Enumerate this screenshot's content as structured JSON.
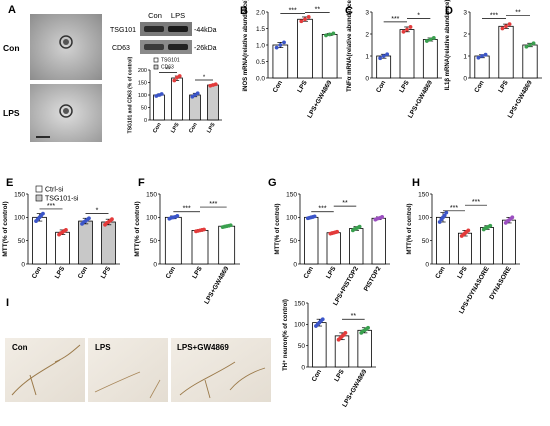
{
  "panels": [
    {
      "id": "A1",
      "letter": "A"
    },
    {
      "id": "B",
      "letter": "B"
    },
    {
      "id": "C",
      "letter": "C"
    },
    {
      "id": "D",
      "letter": "D"
    },
    {
      "id": "E",
      "letter": "E"
    },
    {
      "id": "F",
      "letter": "F"
    },
    {
      "id": "G",
      "letter": "G"
    },
    {
      "id": "H",
      "letter": "H"
    },
    {
      "id": "I",
      "letter": "I"
    }
  ],
  "panel_a": {
    "em_labels": [
      "Con",
      "LPS"
    ],
    "blot": {
      "columns": [
        "Con",
        "LPS"
      ],
      "rows": [
        {
          "protein": "TSG101",
          "size": "-44kDa"
        },
        {
          "protein": "CD63",
          "size": "-26kDa"
        }
      ]
    }
  },
  "panel_i": {
    "image_labels": [
      "Con",
      "LPS",
      "LPS+GW4869"
    ]
  },
  "colors": {
    "con": "#3b55c8",
    "lps": "#e33b3b",
    "gw4869": "#3aa04f",
    "pistop2": "#9b4fc0",
    "dynasore": "#9b4fc0",
    "gray_bar": "#c8c8c8"
  },
  "chart_data": [
    {
      "id": "A_bar",
      "type": "bar",
      "ylabel": "TSG101 and CD63 (% of control)",
      "categories": [
        "Con",
        "LPS",
        "Con",
        "LPS"
      ],
      "ylim": [
        0,
        200
      ],
      "yticks": [
        0,
        50,
        100,
        150,
        200
      ],
      "legend": [
        "TSG101",
        "CD63"
      ],
      "values": [
        100,
        168,
        100,
        140
      ],
      "bar_fill": [
        "#ffffff",
        "#ffffff",
        "#cccccc",
        "#cccccc"
      ],
      "points": [
        [
          96,
          100,
          104
        ],
        [
          158,
          170,
          176
        ],
        [
          93,
          100,
          107
        ],
        [
          137,
          140,
          143
        ]
      ],
      "point_colors": [
        "#3b55c8",
        "#e33b3b",
        "#3b55c8",
        "#e33b3b"
      ],
      "sig": [
        {
          "from": 0,
          "to": 1,
          "y": 190,
          "label": "**"
        },
        {
          "from": 2,
          "to": 3,
          "y": 160,
          "label": "*"
        }
      ]
    },
    {
      "id": "B",
      "type": "bar",
      "ylabel": "iNOS mRNA(relative abundance)",
      "categories": [
        "Con",
        "LPS",
        "LPS+GW4869"
      ],
      "ylim": [
        0,
        2.0
      ],
      "yticks": [
        0.0,
        0.5,
        1.0,
        1.5,
        2.0
      ],
      "values": [
        1.0,
        1.78,
        1.32
      ],
      "points": [
        [
          0.92,
          1.0,
          1.08
        ],
        [
          1.72,
          1.78,
          1.85
        ],
        [
          1.29,
          1.32,
          1.35
        ]
      ],
      "point_colors": [
        "#3b55c8",
        "#e33b3b",
        "#3aa04f"
      ],
      "sig": [
        {
          "from": 0,
          "to": 1,
          "y": 1.95,
          "label": "***"
        },
        {
          "from": 1,
          "to": 2,
          "y": 1.98,
          "label": "**"
        }
      ]
    },
    {
      "id": "C",
      "type": "bar",
      "ylabel": "TNFα mRNA(relative abundance)",
      "categories": [
        "Con",
        "LPS",
        "LPS+GW4869"
      ],
      "ylim": [
        0,
        3
      ],
      "yticks": [
        0,
        1,
        2,
        3
      ],
      "values": [
        1.0,
        2.2,
        1.75
      ],
      "points": [
        [
          0.9,
          1.0,
          1.08
        ],
        [
          2.1,
          2.2,
          2.32
        ],
        [
          1.68,
          1.75,
          1.82
        ]
      ],
      "point_colors": [
        "#3b55c8",
        "#e33b3b",
        "#3aa04f"
      ],
      "sig": [
        {
          "from": 0,
          "to": 1,
          "y": 2.55,
          "label": "***"
        },
        {
          "from": 1,
          "to": 2,
          "y": 2.7,
          "label": "*"
        }
      ]
    },
    {
      "id": "D",
      "type": "bar",
      "ylabel": "IL1β mRNA(relative abundance)",
      "categories": [
        "Con",
        "LPS",
        "LPS+GW4869"
      ],
      "ylim": [
        0,
        3
      ],
      "yticks": [
        0,
        1,
        2,
        3
      ],
      "values": [
        1.0,
        2.35,
        1.5
      ],
      "points": [
        [
          0.92,
          1.0,
          1.06
        ],
        [
          2.25,
          2.35,
          2.45
        ],
        [
          1.42,
          1.5,
          1.58
        ]
      ],
      "point_colors": [
        "#3b55c8",
        "#e33b3b",
        "#3aa04f"
      ],
      "sig": [
        {
          "from": 0,
          "to": 1,
          "y": 2.7,
          "label": "***"
        },
        {
          "from": 1,
          "to": 2,
          "y": 2.85,
          "label": "**"
        }
      ]
    },
    {
      "id": "E",
      "type": "bar",
      "ylabel": "MTT(% of control)",
      "categories": [
        "Con",
        "LPS",
        "Con",
        "LPS"
      ],
      "ylim": [
        0,
        150
      ],
      "yticks": [
        0,
        50,
        100,
        150
      ],
      "legend": [
        "Ctrl-si",
        "TSG101-si"
      ],
      "values": [
        100,
        68,
        92,
        90
      ],
      "bar_fill": [
        "#ffffff",
        "#ffffff",
        "#c8c8c8",
        "#c8c8c8"
      ],
      "points": [
        [
          92,
          96,
          100,
          104,
          108
        ],
        [
          63,
          66,
          68,
          71,
          73
        ],
        [
          86,
          90,
          92,
          95,
          98
        ],
        [
          84,
          88,
          90,
          93,
          96
        ]
      ],
      "point_colors": [
        "#3b55c8",
        "#e33b3b",
        "#3b55c8",
        "#e33b3b"
      ],
      "sig": [
        {
          "from": 0,
          "to": 1,
          "y": 118,
          "label": "***"
        },
        {
          "from": 2,
          "to": 3,
          "y": 108,
          "label": "*"
        }
      ]
    },
    {
      "id": "F",
      "type": "bar",
      "ylabel": "MTT(% of control)",
      "categories": [
        "Con",
        "LPS",
        "LPS+GW4869"
      ],
      "ylim": [
        0,
        150
      ],
      "yticks": [
        0,
        50,
        100,
        150
      ],
      "values": [
        100,
        72,
        81
      ],
      "points": [
        [
          97,
          99,
          100,
          101,
          103
        ],
        [
          70,
          71,
          72,
          73,
          74
        ],
        [
          79,
          80,
          81,
          82,
          83
        ]
      ],
      "point_colors": [
        "#3b55c8",
        "#e33b3b",
        "#3aa04f"
      ],
      "sig": [
        {
          "from": 0,
          "to": 1,
          "y": 112,
          "label": "***"
        },
        {
          "from": 1,
          "to": 2,
          "y": 122,
          "label": "***"
        }
      ]
    },
    {
      "id": "G",
      "type": "bar",
      "ylabel": "MTT(% of control)",
      "categories": [
        "Con",
        "LPS",
        "LPS+PISTOP2",
        "PISTOP2"
      ],
      "ylim": [
        0,
        150
      ],
      "yticks": [
        0,
        50,
        100,
        150
      ],
      "values": [
        100,
        67,
        76,
        98
      ],
      "points": [
        [
          98,
          99,
          100,
          101,
          102
        ],
        [
          65,
          66,
          67,
          68,
          69
        ],
        [
          72,
          75,
          76,
          78,
          80
        ],
        [
          95,
          97,
          98,
          99,
          101
        ]
      ],
      "point_colors": [
        "#3b55c8",
        "#e33b3b",
        "#3aa04f",
        "#9b4fc0"
      ],
      "sig": [
        {
          "from": 0,
          "to": 1,
          "y": 112,
          "label": "***"
        },
        {
          "from": 1,
          "to": 2,
          "y": 124,
          "label": "**"
        }
      ]
    },
    {
      "id": "H",
      "type": "bar",
      "ylabel": "MTT(% of control)",
      "categories": [
        "Con",
        "LPS",
        "LPS+DYNASORE",
        "DYNASORE"
      ],
      "ylim": [
        0,
        150
      ],
      "yticks": [
        0,
        50,
        100,
        150
      ],
      "values": [
        100,
        66,
        78,
        94
      ],
      "points": [
        [
          90,
          96,
          100,
          104,
          110
        ],
        [
          60,
          63,
          66,
          69,
          72
        ],
        [
          74,
          77,
          78,
          80,
          82
        ],
        [
          88,
          92,
          94,
          97,
          100
        ]
      ],
      "point_colors": [
        "#3b55c8",
        "#e33b3b",
        "#3aa04f",
        "#9b4fc0"
      ],
      "sig": [
        {
          "from": 0,
          "to": 1,
          "y": 114,
          "label": "***"
        },
        {
          "from": 1,
          "to": 2,
          "y": 126,
          "label": "***"
        }
      ]
    },
    {
      "id": "I_bar",
      "type": "bar",
      "ylabel": "TH⁺ neuron(% of control)",
      "categories": [
        "Con",
        "LPS",
        "LPS+GW4869"
      ],
      "ylim": [
        0,
        150
      ],
      "yticks": [
        0,
        50,
        100,
        150
      ],
      "values": [
        104,
        73,
        86
      ],
      "points": [
        [
          96,
          100,
          104,
          108,
          112
        ],
        [
          64,
          68,
          72,
          75,
          80
        ],
        [
          80,
          84,
          86,
          89,
          92
        ]
      ],
      "point_colors": [
        "#3b55c8",
        "#e33b3b",
        "#3aa04f"
      ],
      "sig": [
        {
          "from": 1,
          "to": 2,
          "y": 112,
          "label": "**"
        }
      ]
    }
  ]
}
